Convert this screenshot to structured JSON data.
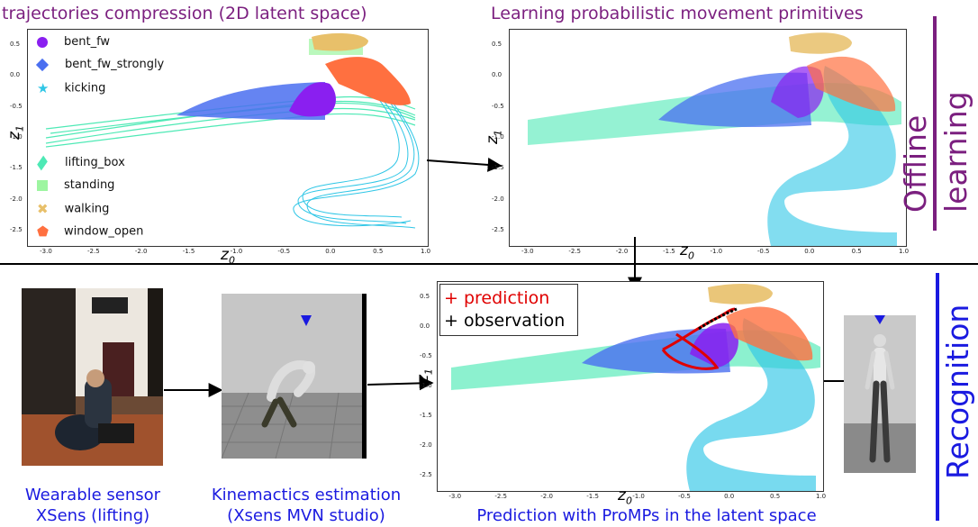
{
  "titles": {
    "compression": "trajectories compression (2D latent space)",
    "learning": "Learning probabilistic movement primitives"
  },
  "side_labels": {
    "offline_line1": "Offline",
    "offline_line2": "learning",
    "recognition": "Recognition"
  },
  "captions": {
    "sensor_line1": "Wearable sensor",
    "sensor_line2": "XSens (lifting)",
    "kinematics_line1": "Kinemactics estimation",
    "kinematics_line2": "(Xsens MVN studio)",
    "prediction": "Prediction with ProMPs in the latent space"
  },
  "legend": [
    {
      "label": "bent_fw",
      "color": "#8a1ff0",
      "marker": "circle"
    },
    {
      "label": "bent_fw_strongly",
      "color": "#4a6ff0",
      "marker": "diamond"
    },
    {
      "label": "kicking",
      "color": "#2fc6e6",
      "marker": "star"
    },
    {
      "label": "lifting_box",
      "color": "#4ee9b5",
      "marker": "thin-diamond"
    },
    {
      "label": "standing",
      "color": "#9df5a0",
      "marker": "square"
    },
    {
      "label": "walking",
      "color": "#e8c06a",
      "marker": "x"
    },
    {
      "label": "window_open",
      "color": "#ff7040",
      "marker": "pentagon"
    }
  ],
  "pred_legend": {
    "prediction": "+ prediction",
    "observation": "+ observation",
    "prediction_color": "#e00000"
  },
  "axes": {
    "x_label_main": "z",
    "x_label_sub": "0",
    "y_label_main": "z",
    "y_label_sub": "1",
    "x_ticks": [
      "-3.0",
      "-2.5",
      "-2.0",
      "-1.5",
      "-1.0",
      "-0.5",
      "0.0",
      "0.5",
      "1.0"
    ],
    "y_ticks": [
      "0.5",
      "0.0",
      "-0.5",
      "-1.0",
      "-1.5",
      "-2.0",
      "-2.5"
    ],
    "x_tick_values": [
      -3.0,
      -2.5,
      -2.0,
      -1.5,
      -1.0,
      -0.5,
      0.0,
      0.5,
      1.0
    ],
    "y_tick_values": [
      0.5,
      0.0,
      -0.5,
      -1.0,
      -1.5,
      -2.0,
      -2.5
    ],
    "xlim": [
      -3.2,
      1.0
    ],
    "ylim": [
      -2.75,
      0.75
    ]
  },
  "colors": {
    "title": "#7b1f7f",
    "caption": "#1a1ae0",
    "offline_bar": "#7b1f7f",
    "recognition_bar": "#1a1ae0"
  }
}
